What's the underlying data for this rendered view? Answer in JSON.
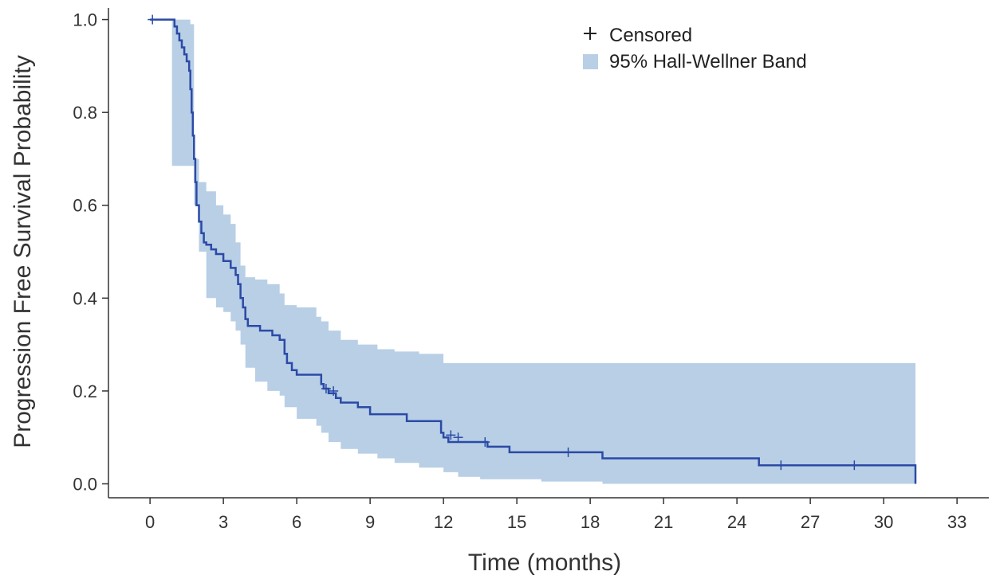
{
  "chart_data": {
    "type": "line",
    "title": "",
    "xlabel": "Time (months)",
    "ylabel": "Progression Free Survival Probability",
    "xlim": [
      -1.7,
      34.3
    ],
    "ylim": [
      -0.03,
      1.025
    ],
    "x_ticks": [
      0,
      3,
      6,
      9,
      12,
      15,
      18,
      21,
      24,
      27,
      30,
      33
    ],
    "y_ticks": [
      0.0,
      0.2,
      0.4,
      0.6,
      0.8,
      1.0
    ],
    "y_tick_labels": [
      "0.0",
      "0.2",
      "0.4",
      "0.6",
      "0.8",
      "1.0"
    ],
    "grid": false,
    "legend_position": "top-right",
    "legend": {
      "censored_label": "Censored",
      "band_label": "95% Hall-Wellner Band"
    },
    "colors": {
      "curve": "#2b4aa6",
      "band": "#b8cfe6",
      "axis": "#333333",
      "text": "#333333"
    },
    "survival_curve": {
      "x": [
        0,
        0.9,
        1.0,
        1.1,
        1.2,
        1.3,
        1.4,
        1.5,
        1.6,
        1.65,
        1.7,
        1.75,
        1.8,
        1.85,
        1.9,
        2.0,
        2.1,
        2.2,
        2.3,
        2.5,
        2.7,
        3.0,
        3.3,
        3.5,
        3.6,
        3.7,
        3.8,
        3.9,
        4.0,
        4.5,
        5.0,
        5.3,
        5.5,
        5.6,
        5.8,
        6.0,
        6.3,
        7.0,
        7.1,
        7.3,
        7.6,
        7.8,
        8.5,
        9.0,
        10.5,
        11.0,
        11.9,
        12.0,
        12.2,
        13.8,
        14.7,
        17.0,
        18.5,
        24.9,
        26.0,
        31.3
      ],
      "y": [
        1.0,
        1.0,
        0.985,
        0.97,
        0.955,
        0.94,
        0.925,
        0.91,
        0.89,
        0.85,
        0.8,
        0.75,
        0.7,
        0.65,
        0.6,
        0.565,
        0.54,
        0.52,
        0.515,
        0.505,
        0.495,
        0.48,
        0.465,
        0.45,
        0.43,
        0.4,
        0.38,
        0.355,
        0.34,
        0.33,
        0.32,
        0.31,
        0.28,
        0.26,
        0.245,
        0.235,
        0.235,
        0.215,
        0.205,
        0.195,
        0.185,
        0.175,
        0.165,
        0.15,
        0.135,
        0.135,
        0.11,
        0.1,
        0.09,
        0.08,
        0.068,
        0.068,
        0.055,
        0.04,
        0.04,
        0.0
      ]
    },
    "band": {
      "x": [
        0.9,
        1.65,
        1.8,
        2.0,
        2.3,
        2.7,
        3.0,
        3.3,
        3.5,
        3.7,
        3.9,
        4.3,
        4.8,
        5.3,
        5.5,
        6.0,
        6.8,
        7.0,
        7.3,
        7.8,
        8.5,
        9.3,
        10.0,
        11.0,
        12.0,
        12.6,
        13.5,
        14.5,
        16.0,
        18.5,
        31.3
      ],
      "lower": [
        0.685,
        0.685,
        0.6,
        0.5,
        0.4,
        0.38,
        0.37,
        0.35,
        0.33,
        0.3,
        0.25,
        0.22,
        0.2,
        0.19,
        0.165,
        0.14,
        0.125,
        0.11,
        0.09,
        0.075,
        0.065,
        0.055,
        0.045,
        0.035,
        0.025,
        0.015,
        0.01,
        0.01,
        0.005,
        0.0,
        0.0
      ],
      "upper": [
        1.0,
        0.99,
        0.7,
        0.65,
        0.63,
        0.6,
        0.58,
        0.56,
        0.52,
        0.47,
        0.445,
        0.44,
        0.43,
        0.41,
        0.385,
        0.38,
        0.36,
        0.35,
        0.33,
        0.31,
        0.3,
        0.29,
        0.285,
        0.28,
        0.26,
        0.26,
        0.26,
        0.26,
        0.26,
        0.26,
        0.26
      ]
    },
    "censored": {
      "x": [
        0.1,
        7.2,
        7.5,
        12.3,
        12.6,
        13.7,
        17.1,
        25.8,
        28.8
      ],
      "y": [
        1.0,
        0.205,
        0.2,
        0.105,
        0.1,
        0.09,
        0.068,
        0.04,
        0.04
      ]
    }
  }
}
